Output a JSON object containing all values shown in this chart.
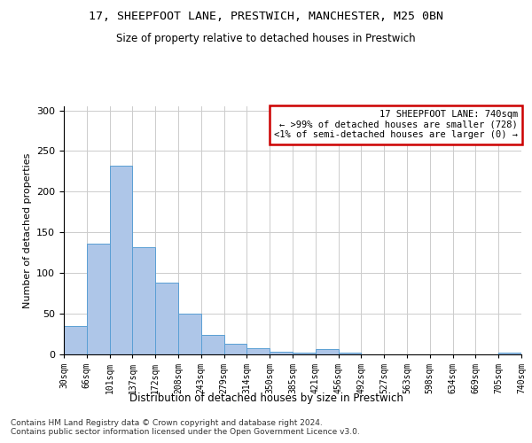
{
  "title1": "17, SHEEPFOOT LANE, PRESTWICH, MANCHESTER, M25 0BN",
  "title2": "Size of property relative to detached houses in Prestwich",
  "xlabel": "Distribution of detached houses by size in Prestwich",
  "ylabel": "Number of detached properties",
  "bin_labels": [
    "30sqm",
    "66sqm",
    "101sqm",
    "137sqm",
    "172sqm",
    "208sqm",
    "243sqm",
    "279sqm",
    "314sqm",
    "350sqm",
    "385sqm",
    "421sqm",
    "456sqm",
    "492sqm",
    "527sqm",
    "563sqm",
    "598sqm",
    "634sqm",
    "669sqm",
    "705sqm",
    "740sqm"
  ],
  "bar_values": [
    35,
    136,
    232,
    132,
    88,
    50,
    24,
    13,
    8,
    3,
    2,
    6,
    2,
    0,
    0,
    0,
    0,
    0,
    0,
    2
  ],
  "bar_color": "#aec6e8",
  "bar_edge_color": "#5a9fd4",
  "annotation_box_text": "17 SHEEPFOOT LANE: 740sqm\n← >99% of detached houses are smaller (728)\n<1% of semi-detached houses are larger (0) →",
  "annotation_box_color": "#ffffff",
  "annotation_box_edge_color": "#cc0000",
  "ylim": [
    0,
    305
  ],
  "yticks": [
    0,
    50,
    100,
    150,
    200,
    250,
    300
  ],
  "footer_text": "Contains HM Land Registry data © Crown copyright and database right 2024.\nContains public sector information licensed under the Open Government Licence v3.0.",
  "bg_color": "#ffffff",
  "grid_color": "#cccccc"
}
